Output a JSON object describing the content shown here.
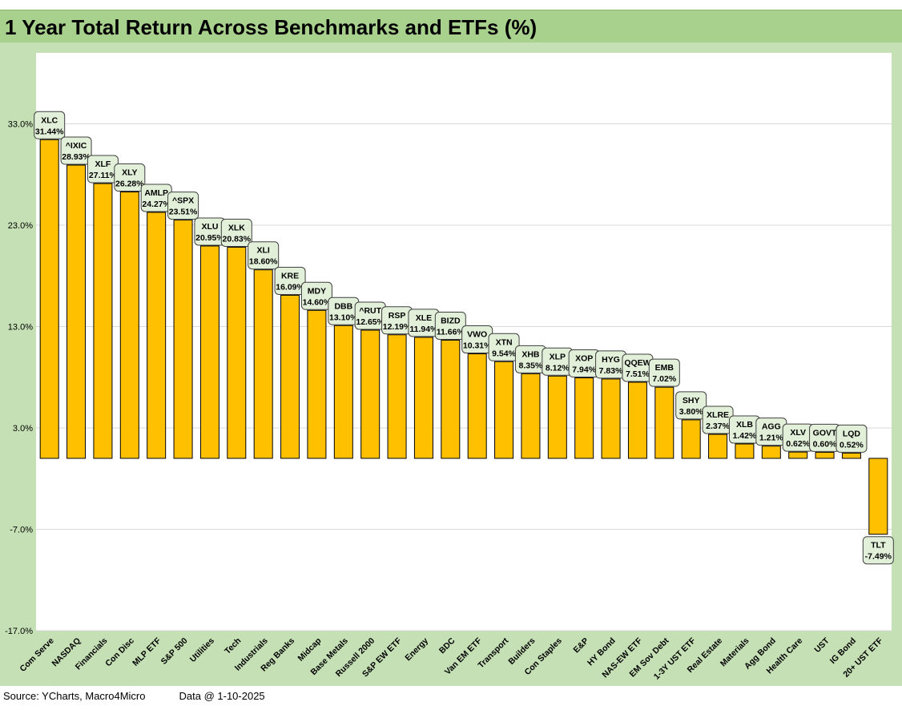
{
  "header": {
    "title": "1 Year Total Return Across Benchmarks and ETFs (%)"
  },
  "footer": {
    "source": "Source: YCharts, Macro4Micro",
    "date": "Data @ 1-10-2025"
  },
  "chart_data": {
    "type": "bar",
    "title": "1 Year Total Return Across Benchmarks and ETFs (%)",
    "xlabel": "",
    "ylabel": "",
    "ylim": [
      -17,
      40
    ],
    "yticks": [
      -17,
      -7,
      3,
      13,
      23,
      33
    ],
    "ytick_labels": [
      "-17.0%",
      "-7.0%",
      "3.0%",
      "13.0%",
      "23.0%",
      "33.0%"
    ],
    "grid": true,
    "legend": "none",
    "bar_color": "#ffc000",
    "label_box_color": "#e2efd9",
    "categories": [
      "Com Serve",
      "NASDAQ",
      "Financials",
      "Con Disc",
      "MLP ETF",
      "S&P 500",
      "Utilities",
      "Tech",
      "Industrials",
      "Reg Banks",
      "Midcap",
      "Base Metals",
      "Russell 2000",
      "S&P EW ETF",
      "Energy",
      "BDC",
      "Van EM ETF",
      "Transport",
      "Builders",
      "Con Staples",
      "E&P",
      "HY Bond",
      "NAS-EW ETF",
      "EM Sov Debt",
      "1-3Y UST ETF",
      "Real Estate",
      "Materials",
      "Agg Bond",
      "Health Care",
      "UST",
      "IG Bond",
      "20+ UST ETF"
    ],
    "tickers": [
      "XLC",
      "^IXIC",
      "XLF",
      "XLY",
      "AMLP",
      "^SPX",
      "XLU",
      "XLK",
      "XLI",
      "KRE",
      "MDY",
      "DBB",
      "^RUT",
      "RSP",
      "XLE",
      "BIZD",
      "VWO",
      "XTN",
      "XHB",
      "XLP",
      "XOP",
      "HYG",
      "QQEW",
      "EMB",
      "SHY",
      "XLRE",
      "XLB",
      "AGG",
      "XLV",
      "GOVT",
      "LQD",
      "TLT"
    ],
    "values": [
      31.44,
      28.93,
      27.11,
      26.28,
      24.27,
      23.51,
      20.95,
      20.83,
      18.6,
      16.09,
      14.6,
      13.1,
      12.65,
      12.19,
      11.94,
      11.66,
      10.31,
      9.54,
      8.35,
      8.12,
      7.94,
      7.83,
      7.51,
      7.02,
      3.8,
      2.37,
      1.42,
      1.21,
      0.62,
      0.6,
      0.52,
      -7.49
    ],
    "value_labels": [
      "31.44%",
      "28.93%",
      "27.11%",
      "26.28%",
      "24.27%",
      "23.51%",
      "20.95%",
      "20.83%",
      "18.60%",
      "16.09%",
      "14.60%",
      "13.10%",
      "12.65%",
      "12.19%",
      "11.94%",
      "11.66%",
      "10.31%",
      "9.54%",
      "8.35%",
      "8.12%",
      "7.94%",
      "7.83%",
      "7.51%",
      "7.02%",
      "3.80%",
      "2.37%",
      "1.42%",
      "1.21%",
      "0.62%",
      "0.60%",
      "0.52%",
      "-7.49%"
    ]
  }
}
